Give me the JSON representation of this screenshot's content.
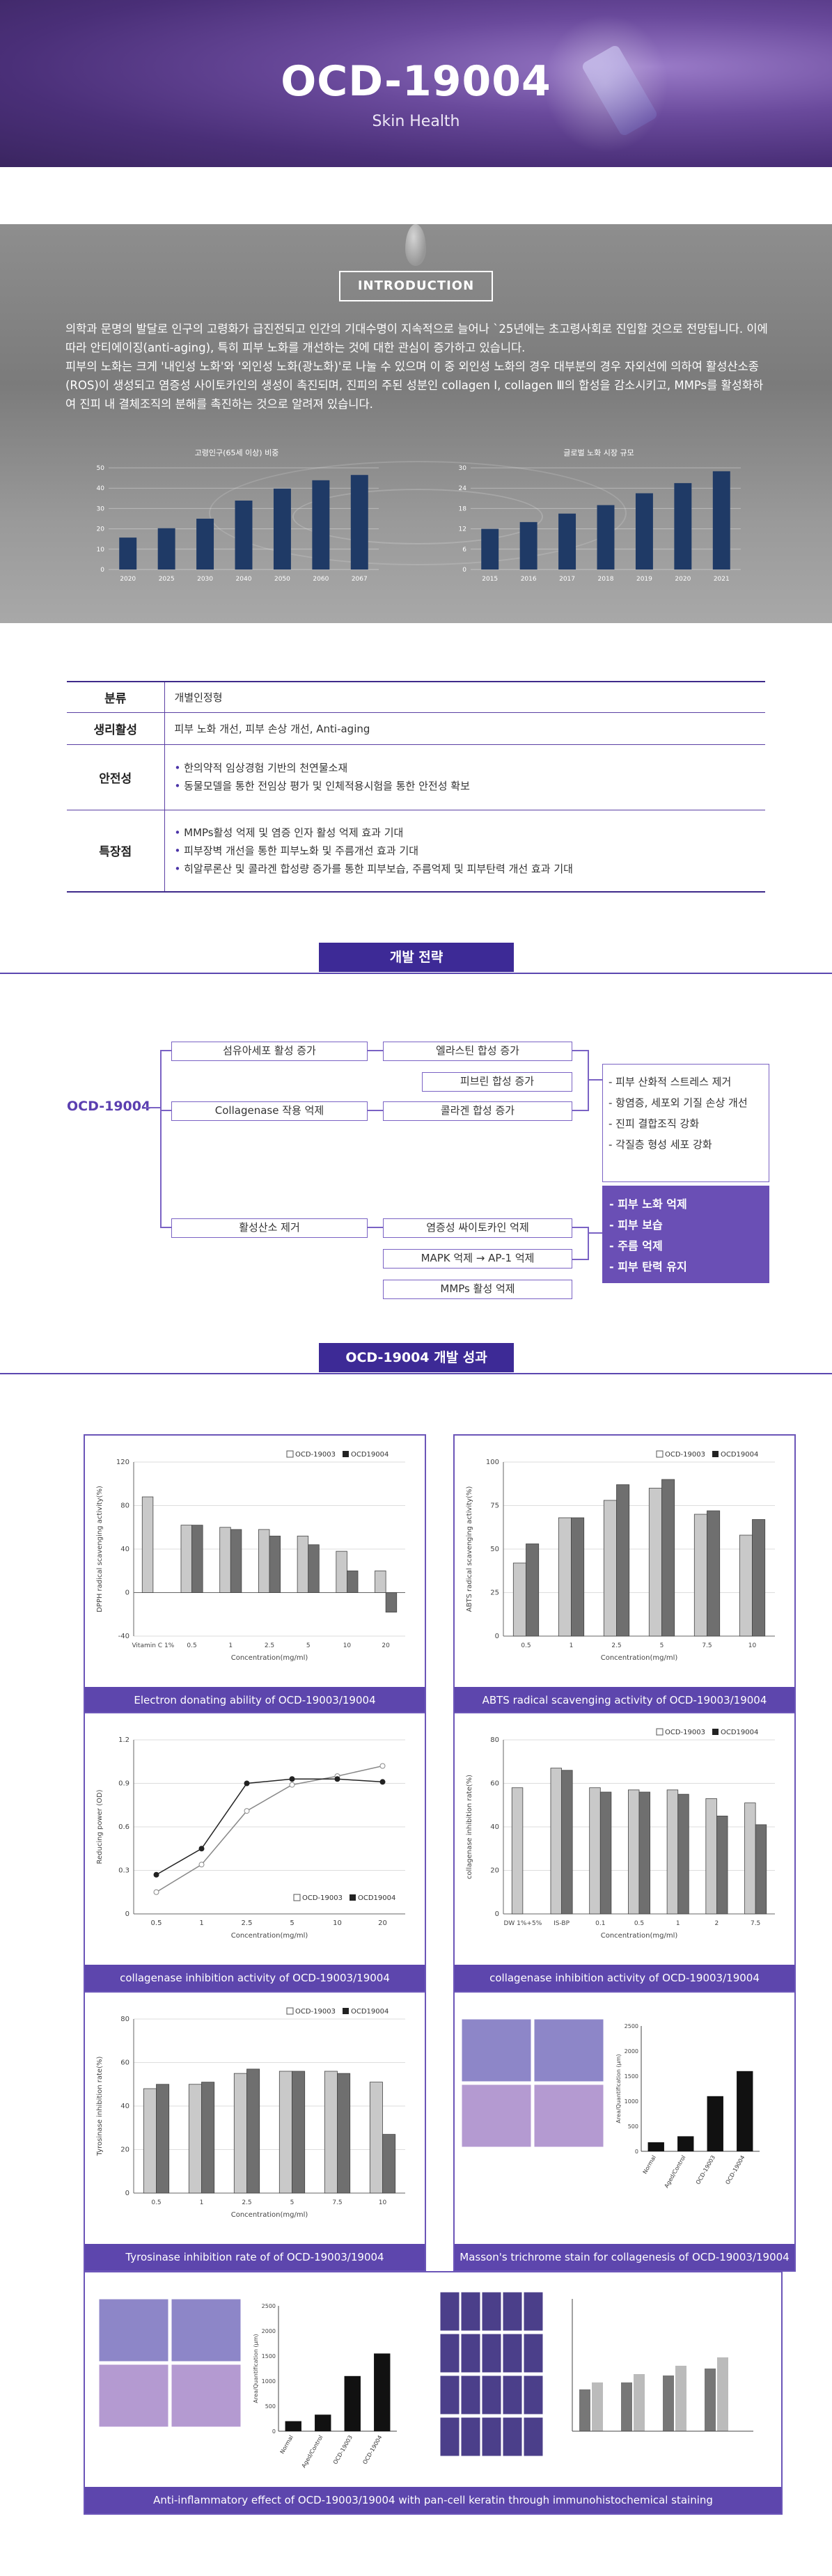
{
  "hero": {
    "title": "OCD-19004",
    "subtitle": "Skin Health"
  },
  "intro": {
    "title": "INTRODUCTION",
    "paragraph1": "의학과 문명의 발달로 인구의 고령화가 급진전되고 인간의 기대수명이 지속적으로 늘어나 `25년에는 초고령사회로 진입할 것으로 전망됩니다. 이에 따라 안티에이징(anti-aging), 특히 피부 노화를 개선하는 것에 대한 관심이 증가하고 있습니다.",
    "paragraph2": "피부의 노화는 크게 '내인성 노화'와 '외인성 노화(광노화)'로 나눌 수 있으며 이 중 외인성 노화의 경우 대부분의 경우 자외선에 의하여 활성산소종(ROS)이 생성되고 염증성 사이토카인의 생성이 촉진되며, 진피의 주된 성분인 collagen Ⅰ, collagen Ⅲ의 합성을 감소시키고, MMPs를 활성화하여 진피 내 결체조직의 분해를 촉진하는 것으로 알려져 있습니다.",
    "charts": [
      {
        "type": "bar",
        "title": "고령인구(65세 이상) 비중",
        "categories": [
          "2020",
          "2025",
          "2030",
          "2040",
          "2050",
          "2060",
          "2067"
        ],
        "values": [
          15.7,
          20.3,
          25.0,
          33.9,
          39.8,
          43.9,
          46.5
        ],
        "ylim": [
          0,
          50
        ],
        "grid": true
      },
      {
        "type": "bar",
        "title": "글로벌 노화 시장 규모",
        "categories": [
          "2015",
          "2016",
          "2017",
          "2018",
          "2019",
          "2020",
          "2021"
        ],
        "values": [
          12,
          14,
          16.5,
          19,
          22.5,
          25.5,
          29
        ],
        "ylim": [
          0,
          30
        ],
        "grid": true
      }
    ]
  },
  "spec": {
    "rows": [
      {
        "label": "분류",
        "lines": [
          "개별인정형"
        ],
        "bullets": false
      },
      {
        "label": "생리활성",
        "lines": [
          "피부 노화 개선, 피부 손상 개선, Anti-aging"
        ],
        "bullets": false
      },
      {
        "label": "안전성",
        "lines": [
          "한의약적 임상경험 기반의 천연물소재",
          "동물모델을 통한 전임상 평가 및 인체적용시험을 통한 안전성 확보"
        ],
        "bullets": true
      },
      {
        "label": "특장점",
        "lines": [
          "MMPs활성 억제 및 염증 인자 활성 억제 효과 기대",
          "피부장벽 개선을 통한 피부노화 및 주름개선 효과 기대",
          "히알루론산 및 콜라겐 합성량 증가를 통한 피부보습, 주름억제 및 피부탄력 개선 효과 기대"
        ],
        "bullets": true
      }
    ]
  },
  "strategy": {
    "title": "개발 전략",
    "root": "OCD-19004",
    "col1": [
      "섬유아세포 활성 증가",
      "Collagenase 작용 억제",
      "활성산소 제거"
    ],
    "col2": [
      "엘라스틴 합성 증가",
      "피브린 합성 증가",
      "콜라겐 합성 증가",
      "염증성 싸이토카인 억제",
      "MAPK 억제 → AP-1 억제",
      "MMPs 활성 억제"
    ],
    "effects": [
      "- 피부 산화적 스트레스 제거",
      "- 항염증, 세포외 기질 손상 개선",
      "- 진피 결합조직 강화",
      "- 각질층 형성 세포 강화"
    ],
    "outcomes": [
      "- 피부 노화 억제",
      "- 피부 보습",
      "- 주름 억제",
      "- 피부 탄력 유지"
    ]
  },
  "results": {
    "title": "OCD-19004 개발 성과",
    "legend": [
      "OCD-19003",
      "OCD19004"
    ],
    "cards": [
      {
        "caption": "Electron donating ability of OCD-19003/19004",
        "ylabel": "DPPH radical scavenging activity(%)",
        "xlabel": "Concentration(mg/ml)"
      },
      {
        "caption": "ABTS radical scavenging activity of OCD-19003/19004",
        "ylabel": "ABTS radical scavenging activity(%)",
        "xlabel": "Concentration(mg/ml)"
      },
      {
        "caption": "collagenase inhibition activity of OCD-19003/19004",
        "ylabel": "Reducing power (OD)",
        "xlabel": "Concentration(mg/ml)"
      },
      {
        "caption": "collagenase inhibition activity of OCD-19003/19004",
        "ylabel": "collagenase inhibition rate(%)",
        "xlabel": "Concentration(mg/ml)"
      },
      {
        "caption": "Tyrosinase inhibition rate of of OCD-19003/19004",
        "ylabel": "Tyrosinase inhibition rate(%)",
        "xlabel": "Concentration(mg/ml)"
      },
      {
        "caption": "Masson's trichrome stain for collagenesis of OCD-19003/19004",
        "ylabel": "Area/Quantification (µm)",
        "xlabel": ""
      },
      {
        "caption": "Anti-inflammatory effect of OCD-19003/19004 with pan-cell keratin through immunohistochemical staining",
        "ylabel": "Area/Quantification (µm)",
        "xlabel": ""
      }
    ]
  },
  "chart_data": [
    {
      "type": "bar",
      "title": "Electron donating ability of OCD-19003/19004",
      "categories": [
        "Vitamin C 1%",
        "0.5",
        "1",
        "2.5",
        "5",
        "10",
        "20"
      ],
      "series": [
        {
          "name": "OCD-19003",
          "values": [
            88,
            62,
            60,
            58,
            52,
            38,
            20
          ]
        },
        {
          "name": "OCD19004",
          "values": [
            0,
            62,
            58,
            52,
            44,
            20,
            -18
          ]
        }
      ],
      "xlabel": "Concentration(mg/ml)",
      "ylabel": "DPPH radical scavenging activity(%)",
      "ylim": [
        -40,
        120
      ]
    },
    {
      "type": "bar",
      "title": "ABTS radical scavenging activity of OCD-19003/19004",
      "categories": [
        "0.5",
        "1",
        "2.5",
        "5",
        "7.5",
        "10"
      ],
      "series": [
        {
          "name": "OCD-19003",
          "values": [
            42,
            68,
            78,
            85,
            70,
            58
          ]
        },
        {
          "name": "OCD19004",
          "values": [
            53,
            68,
            87,
            90,
            72,
            67
          ]
        }
      ],
      "xlabel": "Concentration(mg/ml)",
      "ylabel": "ABTS radical scavenging activity(%)",
      "ylim": [
        0,
        100
      ]
    },
    {
      "type": "line",
      "title": "collagenase inhibition activity of OCD-19003/19004",
      "categories": [
        "0.5",
        "1",
        "2.5",
        "5",
        "10",
        "20"
      ],
      "series": [
        {
          "name": "OCD-19003",
          "values": [
            0.15,
            0.34,
            0.71,
            0.89,
            0.95,
            1.02
          ]
        },
        {
          "name": "OCD19004",
          "values": [
            0.27,
            0.45,
            0.9,
            0.93,
            0.93,
            0.91
          ]
        }
      ],
      "xlabel": "Concentration(mg/ml)",
      "ylabel": "Reducing power (OD)",
      "ylim": [
        0,
        1.2
      ]
    },
    {
      "type": "bar",
      "title": "collagenase inhibition activity of OCD-19003/19004",
      "categories": [
        "DW 1%+5%",
        "IS-BP",
        "0.1",
        "0.5",
        "1",
        "2",
        "7.5"
      ],
      "series": [
        {
          "name": "OCD-19003",
          "values": [
            58,
            67,
            58,
            57,
            57,
            53,
            51
          ]
        },
        {
          "name": "OCD19004",
          "values": [
            0,
            66,
            56,
            56,
            55,
            45,
            41
          ]
        }
      ],
      "xlabel": "Concentration(mg/ml)",
      "ylabel": "collagenase inhibition rate(%)",
      "ylim": [
        0,
        80
      ]
    },
    {
      "type": "bar",
      "title": "Tyrosinase inhibition rate of of OCD-19003/19004",
      "categories": [
        "0.5",
        "1",
        "2.5",
        "5",
        "7.5",
        "10"
      ],
      "series": [
        {
          "name": "OCD-19003",
          "values": [
            48,
            50,
            55,
            56,
            56,
            51
          ]
        },
        {
          "name": "OCD19004",
          "values": [
            50,
            51,
            57,
            56,
            55,
            27
          ]
        }
      ],
      "xlabel": "Concentration(mg/ml)",
      "ylabel": "Tyrosinase inhibition rate(%)",
      "ylim": [
        0,
        80
      ]
    },
    {
      "type": "bar",
      "title": "Masson's trichrome stain for collagenesis of OCD-19003/19004",
      "categories": [
        "Normal",
        "Aged/Control",
        "OCD-19003",
        "OCD-19004"
      ],
      "values": [
        180,
        300,
        1100,
        1600
      ],
      "ylabel": "Area/Quantification (µm)",
      "ylim": [
        0,
        2500
      ]
    },
    {
      "type": "bar",
      "title": "Anti-inflammatory effect of OCD-19003/19004 with pan-cell keratin through immunohistochemical staining",
      "categories": [
        "Normal",
        "Aged/Control",
        "OCD-19003",
        "OCD-19004"
      ],
      "values": [
        200,
        330,
        1100,
        1550
      ],
      "ylabel": "Area/Quantification (µm)",
      "ylim": [
        0,
        2500
      ]
    }
  ],
  "colors": {
    "brand": "#3d2a96",
    "accent": "#6a4fb5",
    "bar_dark": "#1f3a66"
  }
}
